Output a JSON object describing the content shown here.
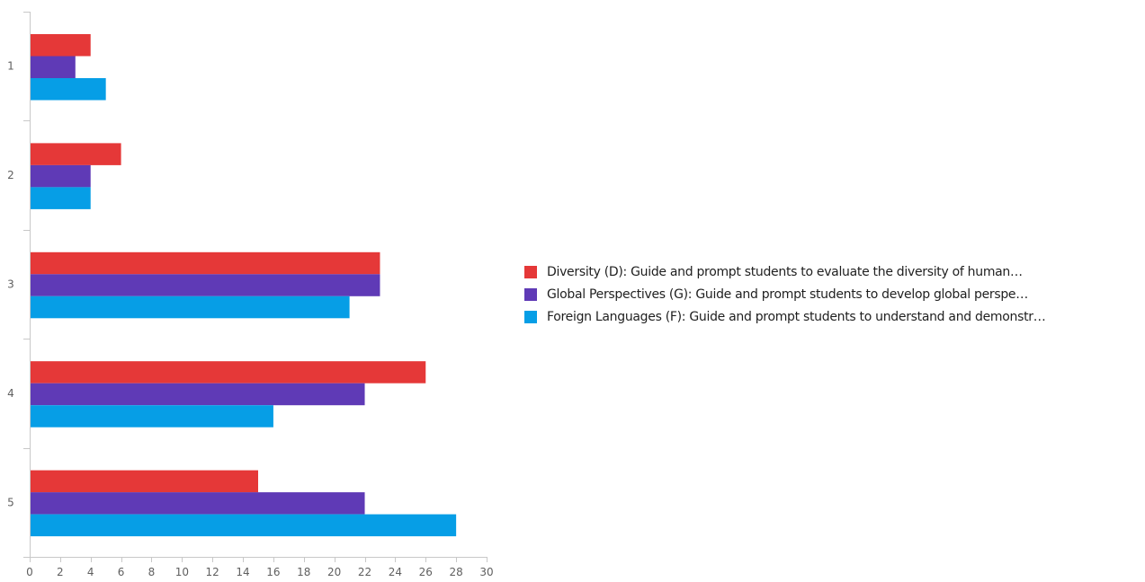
{
  "chart_data": {
    "type": "bar",
    "orientation": "horizontal",
    "categories": [
      "1",
      "2",
      "3",
      "4",
      "5"
    ],
    "series": [
      {
        "name": "Diversity (D): Guide and prompt students to evaluate the diversity of human…",
        "color": "#e53838",
        "values": [
          4,
          6,
          23,
          26,
          15
        ]
      },
      {
        "name": "Global Perspectives (G): Guide and prompt students to develop global perspe…",
        "color": "#5f3ab6",
        "values": [
          3,
          4,
          23,
          22,
          22
        ]
      },
      {
        "name": "Foreign Languages (F): Guide and prompt students to understand and demonstr…",
        "color": "#069ee6",
        "values": [
          5,
          4,
          21,
          16,
          28
        ]
      }
    ],
    "xlim": [
      0,
      30
    ],
    "x_ticks": [
      "0",
      "2",
      "4",
      "6",
      "8",
      "10",
      "12",
      "14",
      "16",
      "18",
      "20",
      "22",
      "24",
      "26",
      "28",
      "30"
    ],
    "grid": false,
    "legend_position": "right"
  }
}
